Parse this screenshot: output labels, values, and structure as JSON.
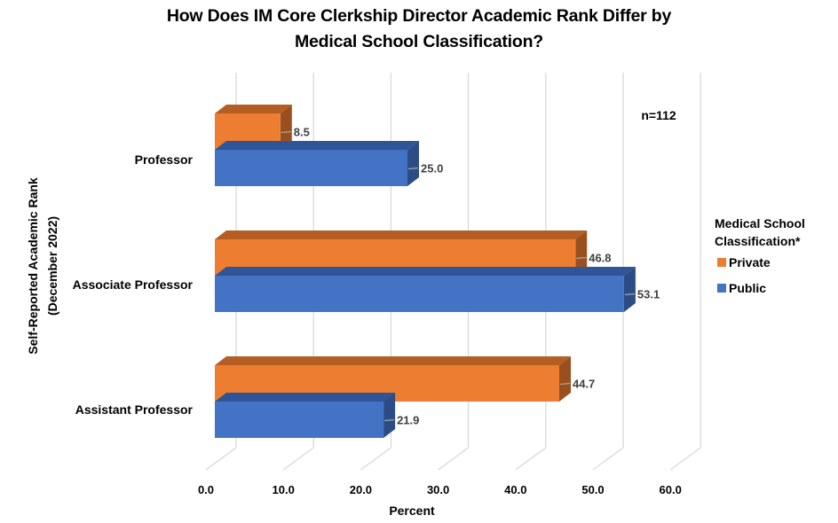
{
  "title_lines": [
    "How Does IM Core Clerkship Director Academic Rank Differ by",
    "Medical School Classification?"
  ],
  "colors": {
    "private": "#ED7D31",
    "private_top": "#B55E23",
    "private_side": "#9A501E",
    "public": "#4472C4",
    "public_top": "#2F5597",
    "public_side": "#2B4C85",
    "grid": "#D9D9D9",
    "leader": "#A6A6A6"
  },
  "annotation": "n=112",
  "chart_data": {
    "type": "bar",
    "orientation": "horizontal",
    "style": "3d-clustered",
    "title": "How Does IM Core Clerkship Director Academic Rank Differ by Medical School Classification?",
    "xlabel": "Percent",
    "ylabel": "Self-Reported Academic Rank (December 2022)",
    "ylabel_lines": [
      "Self-Reported Academic Rank",
      "(December 2022)"
    ],
    "categories": [
      "Professor",
      "Associate Professor",
      "Assistant Professor"
    ],
    "series": [
      {
        "name": "Private",
        "values": [
          8.5,
          46.8,
          44.7
        ]
      },
      {
        "name": "Public",
        "values": [
          25.0,
          53.1,
          21.9
        ]
      }
    ],
    "xlim": [
      0,
      60
    ],
    "xticks": [
      0,
      10,
      20,
      30,
      40,
      50,
      60
    ],
    "xtick_labels": [
      "0.0",
      "10.0",
      "20.0",
      "30.0",
      "40.0",
      "50.0",
      "60.0"
    ],
    "data_labels": [
      [
        "8.5",
        "46.8",
        "44.7"
      ],
      [
        "25.0",
        "53.1",
        "21.9"
      ]
    ],
    "grid": true,
    "legend": {
      "title_lines": [
        "Medical School",
        "Classification*"
      ],
      "position": "right",
      "entries": [
        "Private",
        "Public"
      ]
    },
    "annotations": [
      "n=112"
    ]
  }
}
